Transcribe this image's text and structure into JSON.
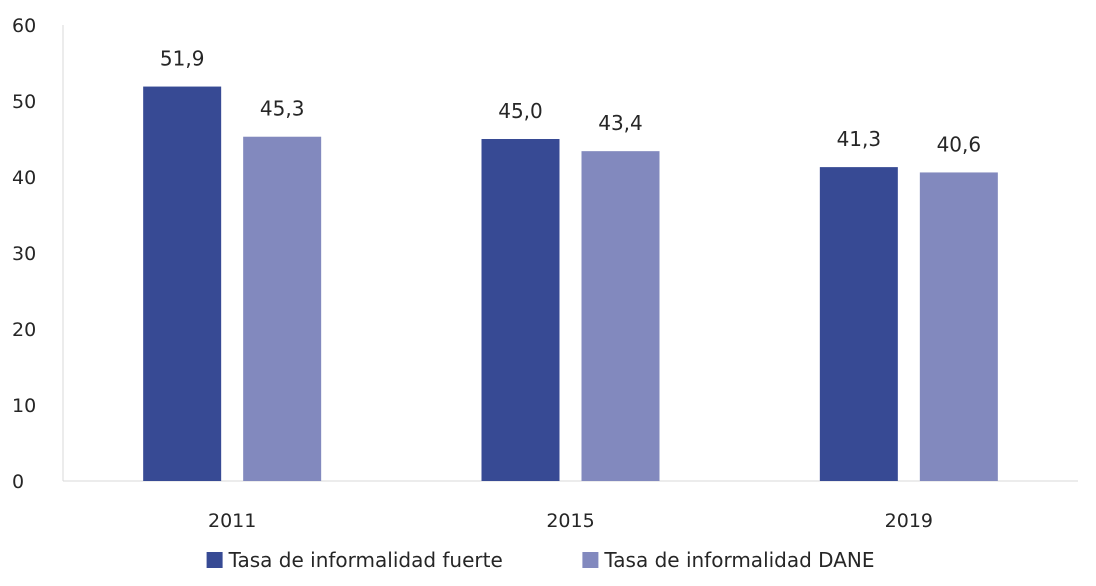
{
  "chart_data": {
    "type": "bar",
    "title": "",
    "xlabel": "",
    "ylabel": "",
    "categories": [
      "2011",
      "2015",
      "2019"
    ],
    "ylim": [
      0,
      60
    ],
    "yticks": [
      0,
      10,
      20,
      30,
      40,
      50,
      60
    ],
    "grid": false,
    "legend_position": "bottom",
    "series": [
      {
        "name": "Tasa de informalidad fuerte",
        "color": "#374a94",
        "values": [
          51.9,
          45.0,
          41.3
        ],
        "labels": [
          "51,9",
          "45,0",
          "41,3"
        ]
      },
      {
        "name": "Tasa de informalidad DANE",
        "color": "#8289be",
        "values": [
          45.3,
          43.4,
          40.6
        ],
        "labels": [
          "45,3",
          "43,4",
          "40,6"
        ]
      }
    ]
  }
}
